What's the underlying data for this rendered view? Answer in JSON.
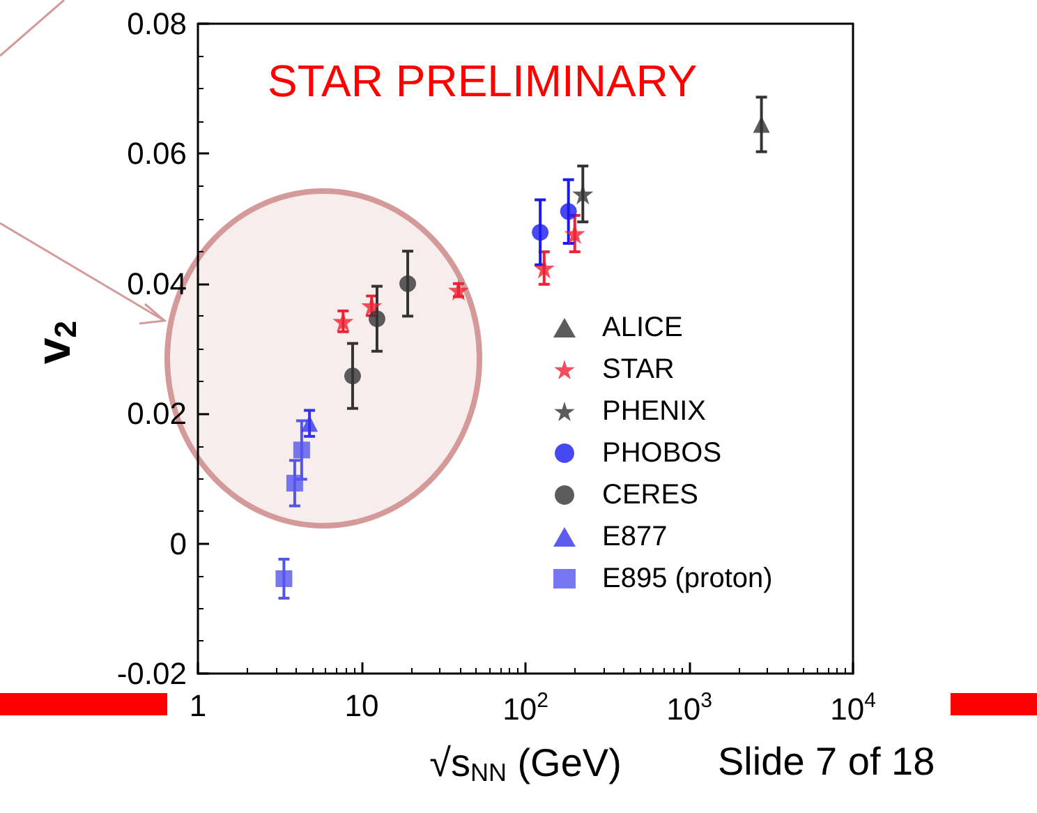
{
  "chart_data": {
    "type": "scatter",
    "xlabel": "√s$_{NN}$ (GeV)",
    "ylabel": "v$_{2}$",
    "log": "x",
    "xlim": [
      1,
      10000
    ],
    "xticks": [
      {
        "value": 1,
        "label": "1"
      },
      {
        "value": 10,
        "label": "10"
      },
      {
        "value": 100,
        "label": "10$^{2}$"
      },
      {
        "value": 1000,
        "label": "10$^{3}$"
      },
      {
        "value": 10000,
        "label": "10$^{4}$"
      }
    ],
    "ylim": [
      -0.02,
      0.08
    ],
    "yticks": [
      -0.02,
      0,
      0.02,
      0.04,
      0.06,
      0.08
    ],
    "grid": false,
    "legend": "right",
    "annotations": [
      "STAR PRELIMINARY",
      "Slide 7 of 18"
    ],
    "series": [
      {
        "name": "ALICE",
        "color": "#333333",
        "marker": "triangle",
        "x": [
          2760
        ],
        "values": [
          0.0645
        ],
        "errors": [
          0.0042
        ]
      },
      {
        "name": "STAR",
        "color": "#ee2233",
        "marker": "star",
        "x": [
          7.7,
          11.5,
          39,
          130,
          200
        ],
        "values": [
          0.0342,
          0.0366,
          0.039,
          0.0424,
          0.0477
        ],
        "errors": [
          0.0016,
          0.0015,
          0.001,
          0.0025,
          0.0028
        ]
      },
      {
        "name": "PHENIX",
        "color": "#333333",
        "marker": "star",
        "x": [
          224
        ],
        "values": [
          0.0538
        ],
        "errors": [
          0.0043
        ]
      },
      {
        "name": "PHOBOS",
        "color": "#1a1aee",
        "marker": "circle",
        "x": [
          123,
          183
        ],
        "values": [
          0.0479,
          0.0511
        ],
        "errors": [
          0.005,
          0.0049
        ]
      },
      {
        "name": "CERES",
        "color": "#333333",
        "marker": "circle",
        "x": [
          8.8,
          12.4,
          19.1
        ],
        "values": [
          0.0258,
          0.0346,
          0.04
        ],
        "errors": [
          0.005,
          0.005,
          0.005
        ]
      },
      {
        "name": "E877",
        "color": "#3333ee",
        "marker": "triangle",
        "x": [
          4.8
        ],
        "values": [
          0.0185
        ],
        "errors": [
          0.002
        ]
      },
      {
        "name": "E895 (proton)",
        "color": "#5555ee",
        "marker": "square",
        "x": [
          3.35,
          3.9,
          4.3
        ],
        "values": [
          -0.0054,
          0.0093,
          0.0144
        ],
        "errors": [
          0.003,
          0.0035,
          0.0045
        ]
      }
    ]
  }
}
